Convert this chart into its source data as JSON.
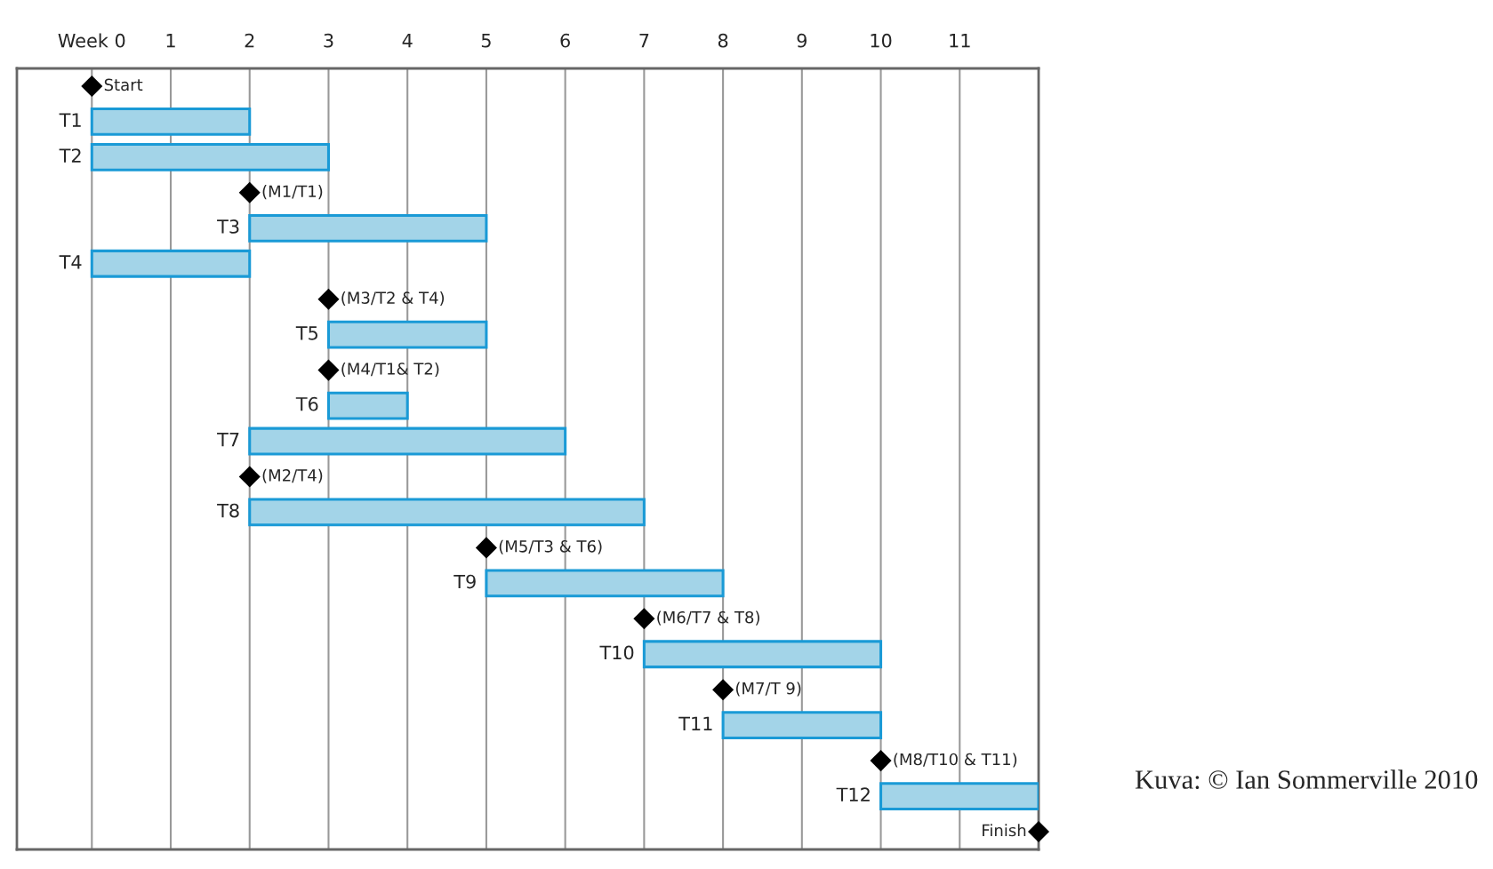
{
  "chart_data": {
    "type": "bar",
    "orientation": "horizontal",
    "tick_labels": "x",
    "grid": "x",
    "categories": [
      "Start",
      "T1",
      "T2",
      "(M1/T1)",
      "T3",
      "T4",
      "(M3/T2 & T4)",
      "T5",
      "(M4/T1& T2)",
      "T6",
      "T7",
      "(M2/T4)",
      "T8",
      "(M5/T3 & T6)",
      "T9",
      "(M6/T7 & T8)",
      "T10",
      "(M7/T 9)",
      "T11",
      "(M8/T10 & T11)",
      "T12",
      "Finish"
    ],
    "series": [
      {
        "color": "#a3d4e8",
        "base": [
          null,
          0,
          0,
          null,
          2,
          0,
          null,
          3,
          null,
          3,
          2,
          null,
          2,
          null,
          5,
          null,
          7,
          null,
          8,
          null,
          10,
          null
        ],
        "values": [
          null,
          2,
          3,
          null,
          3,
          2,
          null,
          2,
          null,
          1,
          4,
          null,
          5,
          null,
          3,
          null,
          3,
          null,
          2,
          null,
          2,
          null
        ]
      },
      {
        "type": "scatter",
        "color": "#000000",
        "marker": "diamond",
        "values": [
          0,
          null,
          null,
          2,
          null,
          null,
          3,
          null,
          3,
          null,
          null,
          2,
          null,
          5,
          null,
          7,
          null,
          8,
          null,
          10,
          null,
          12
        ]
      }
    ],
    "xlim": [
      -0.95,
      12
    ],
    "xticks": [
      {
        "value": 0,
        "label": "Week 0"
      },
      1,
      2,
      3,
      4,
      5,
      6,
      7,
      8,
      9,
      10,
      11
    ],
    "annotations": [
      "Kuva: © Ian Sommerville 2010"
    ]
  }
}
